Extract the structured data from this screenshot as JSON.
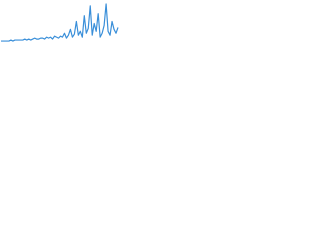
{
  "chart_data": {
    "type": "line",
    "color": "#3a8fd9",
    "values": [
      2,
      2,
      2,
      2,
      2,
      3,
      2,
      3,
      3,
      3,
      3,
      3,
      4,
      3,
      4,
      3,
      4,
      5,
      4,
      4,
      5,
      5,
      4,
      6,
      5,
      6,
      4,
      7,
      6,
      5,
      7,
      6,
      10,
      5,
      8,
      14,
      6,
      9,
      22,
      8,
      12,
      6,
      28,
      10,
      15,
      38,
      8,
      20,
      12,
      30,
      6,
      10,
      18,
      40,
      12,
      8,
      22,
      14,
      10,
      16
    ],
    "ylim": [
      0,
      42
    ]
  }
}
